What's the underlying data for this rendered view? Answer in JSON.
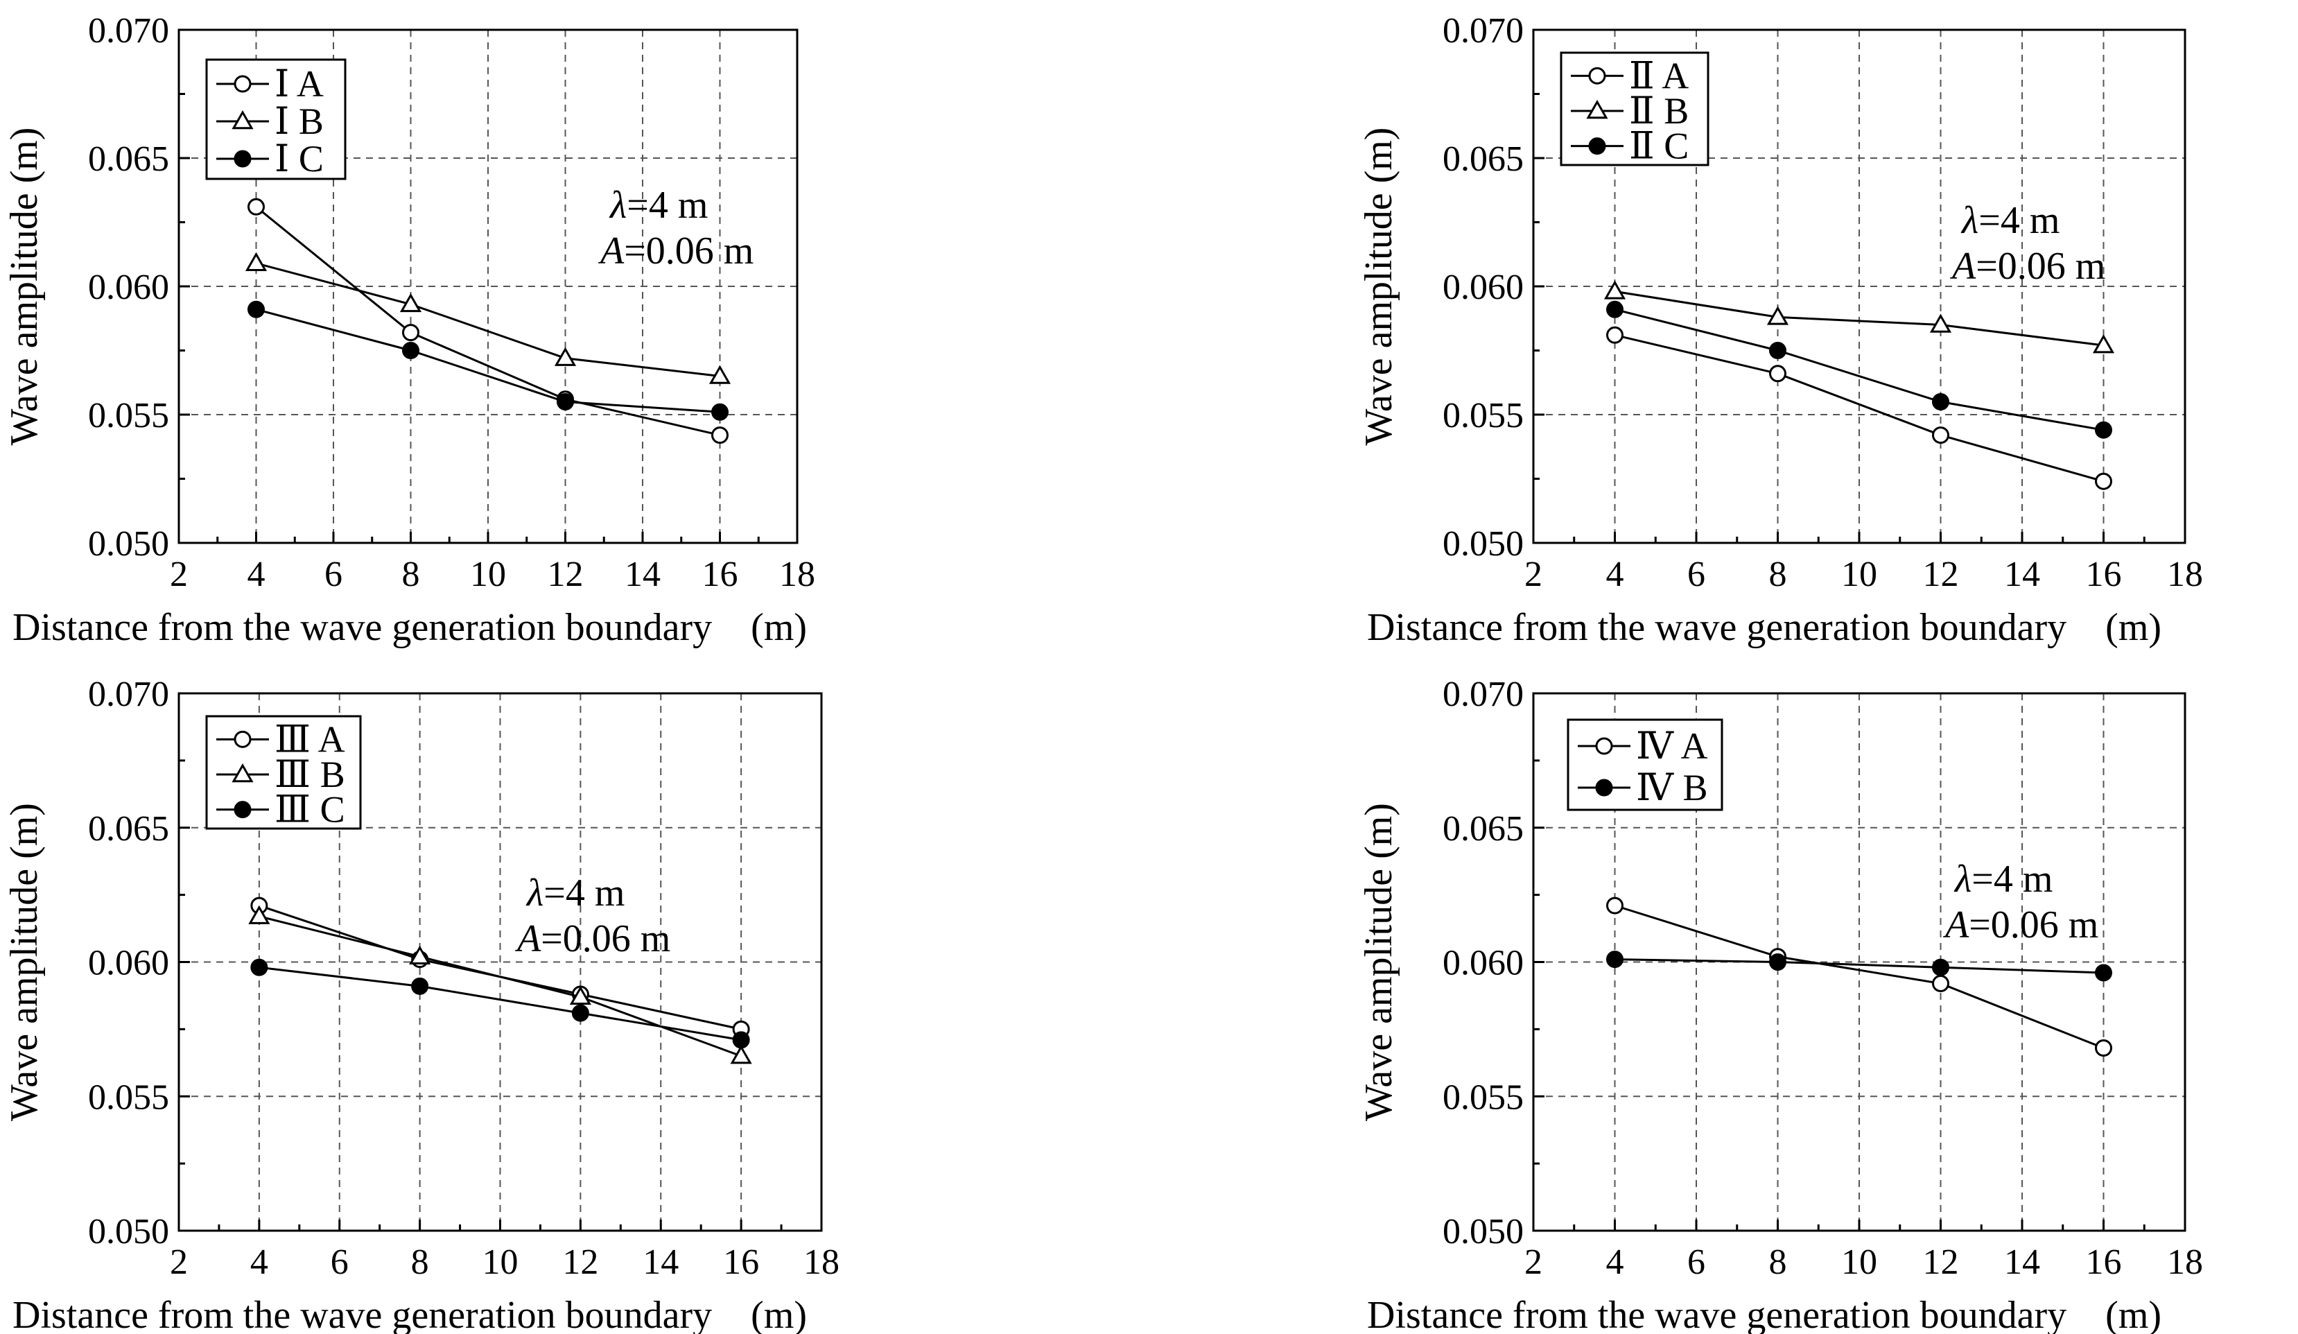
{
  "chart_data": [
    {
      "type": "line",
      "panel": "I",
      "xlabel": "Distance from the wave generation boundary (m)",
      "ylabel": "Wave amplitude (m)",
      "xlim": [
        2,
        18
      ],
      "ylim": [
        0.05,
        0.07
      ],
      "xticks": [
        "2",
        "4",
        "6",
        "8",
        "10",
        "12",
        "14",
        "16",
        "18"
      ],
      "yticks": [
        "0.050",
        "0.055",
        "0.060",
        "0.065",
        "0.070"
      ],
      "grid": true,
      "legend_position": "top-left",
      "annotation": {
        "lambda": "λ",
        "lambda_value": "=4 m",
        "amp": "A",
        "amp_value": "=0.06 m"
      },
      "x": [
        4,
        8,
        12,
        16
      ],
      "series": [
        {
          "name": "Ⅰ A",
          "marker": "open-circle",
          "values": [
            0.0631,
            0.0582,
            0.0556,
            0.0542
          ]
        },
        {
          "name": "Ⅰ B",
          "marker": "open-triangle",
          "values": [
            0.0609,
            0.0593,
            0.0572,
            0.0565
          ]
        },
        {
          "name": "Ⅰ C",
          "marker": "filled-circle",
          "values": [
            0.0591,
            0.0575,
            0.0555,
            0.0551
          ]
        }
      ]
    },
    {
      "type": "line",
      "panel": "II",
      "xlabel": "Distance from the wave generation boundary (m)",
      "ylabel": "Wave amplitude (m)",
      "xlim": [
        2,
        18
      ],
      "ylim": [
        0.05,
        0.07
      ],
      "xticks": [
        "2",
        "4",
        "6",
        "8",
        "10",
        "12",
        "14",
        "16",
        "18"
      ],
      "yticks": [
        "0.050",
        "0.055",
        "0.060",
        "0.065",
        "0.070"
      ],
      "grid": true,
      "legend_position": "top-left",
      "annotation": {
        "lambda": "λ",
        "lambda_value": "=4 m",
        "amp": "A",
        "amp_value": "=0.06 m"
      },
      "x": [
        4,
        8,
        12,
        16
      ],
      "series": [
        {
          "name": "Ⅱ A",
          "marker": "open-circle",
          "values": [
            0.0581,
            0.0566,
            0.0542,
            0.0524
          ]
        },
        {
          "name": "Ⅱ B",
          "marker": "open-triangle",
          "values": [
            0.0598,
            0.0588,
            0.0585,
            0.0577
          ]
        },
        {
          "name": "Ⅱ C",
          "marker": "filled-circle",
          "values": [
            0.0591,
            0.0575,
            0.0555,
            0.0544
          ]
        }
      ]
    },
    {
      "type": "line",
      "panel": "III",
      "xlabel": "Distance from the wave generation boundary (m)",
      "ylabel": "Wave amplitude (m)",
      "xlim": [
        2,
        18
      ],
      "ylim": [
        0.05,
        0.07
      ],
      "xticks": [
        "2",
        "4",
        "6",
        "8",
        "10",
        "12",
        "14",
        "16",
        "18"
      ],
      "yticks": [
        "0.050",
        "0.055",
        "0.060",
        "0.065",
        "0.070"
      ],
      "grid": true,
      "legend_position": "top-left",
      "annotation": {
        "lambda": "λ",
        "lambda_value": "=4 m",
        "amp": "A",
        "amp_value": "=0.06 m"
      },
      "x": [
        4,
        8,
        12,
        16
      ],
      "series": [
        {
          "name": "Ⅲ A",
          "marker": "open-circle",
          "values": [
            0.0621,
            0.0601,
            0.0588,
            0.0575
          ]
        },
        {
          "name": "Ⅲ B",
          "marker": "open-triangle",
          "values": [
            0.0617,
            0.0602,
            0.0587,
            0.0565
          ]
        },
        {
          "name": "Ⅲ C",
          "marker": "filled-circle",
          "values": [
            0.0598,
            0.0591,
            0.0581,
            0.0571
          ]
        }
      ]
    },
    {
      "type": "line",
      "panel": "IV",
      "xlabel": "Distance from the wave generation boundary (m)",
      "ylabel": "Wave amplitude (m)",
      "xlim": [
        2,
        18
      ],
      "ylim": [
        0.05,
        0.07
      ],
      "xticks": [
        "2",
        "4",
        "6",
        "8",
        "10",
        "12",
        "14",
        "16",
        "18"
      ],
      "yticks": [
        "0.050",
        "0.055",
        "0.060",
        "0.065",
        "0.070"
      ],
      "grid": true,
      "legend_position": "top-left",
      "annotation": {
        "lambda": "λ",
        "lambda_value": "=4 m",
        "amp": "A",
        "amp_value": "=0.06 m"
      },
      "x": [
        4,
        8,
        12,
        16
      ],
      "series": [
        {
          "name": "Ⅳ A",
          "marker": "open-circle",
          "values": [
            0.0621,
            0.0602,
            0.0592,
            0.0568
          ]
        },
        {
          "name": "Ⅳ B",
          "marker": "filled-circle",
          "values": [
            0.0601,
            0.06,
            0.0598,
            0.0596
          ]
        }
      ]
    }
  ]
}
